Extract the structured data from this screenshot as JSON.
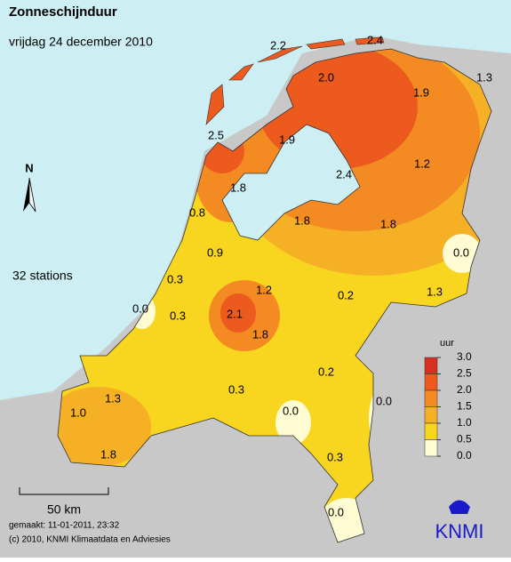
{
  "title": "Zonneschijnduur",
  "subtitle": "vrijdag 24 december 2010",
  "north": "N",
  "station_count": "32 stations",
  "stations": [
    "2.2",
    "2.4",
    "2.0",
    "1.3",
    "1.9",
    "2.5",
    "1.9",
    "1.2",
    "1.8",
    "2.4",
    "0.8",
    "1.8",
    "1.8",
    "0.9",
    "0.0",
    "0.3",
    "1.2",
    "0.2",
    "1.3",
    "0.0",
    "0.3",
    "2.1",
    "1.8",
    "1.3",
    "0.2",
    "0.3",
    "0.0",
    "0.0",
    "1.0",
    "0.3",
    "1.8",
    "0.0"
  ],
  "legend": {
    "title": "uur",
    "ticks": [
      {
        "value": 3,
        "label": "3.0"
      },
      {
        "value": 2.5,
        "label": "2.5"
      },
      {
        "value": 2,
        "label": "2.0"
      },
      {
        "value": 1.5,
        "label": "1.5"
      },
      {
        "value": 1,
        "label": "1.0"
      },
      {
        "value": 0.5,
        "label": "0.5"
      },
      {
        "value": 0,
        "label": "0.0"
      }
    ],
    "colors": [
      "#d7301f",
      "#ec5a1e",
      "#f38b22",
      "#f6b026",
      "#f8d51e",
      "#fffbd2"
    ]
  },
  "scale_bar": "50 km",
  "made": "gemaakt: 11-01-2011, 23:32",
  "copyright": "(c) 2010, KNMI Klimaatdata en Adviesies",
  "logo": "KNMI"
}
